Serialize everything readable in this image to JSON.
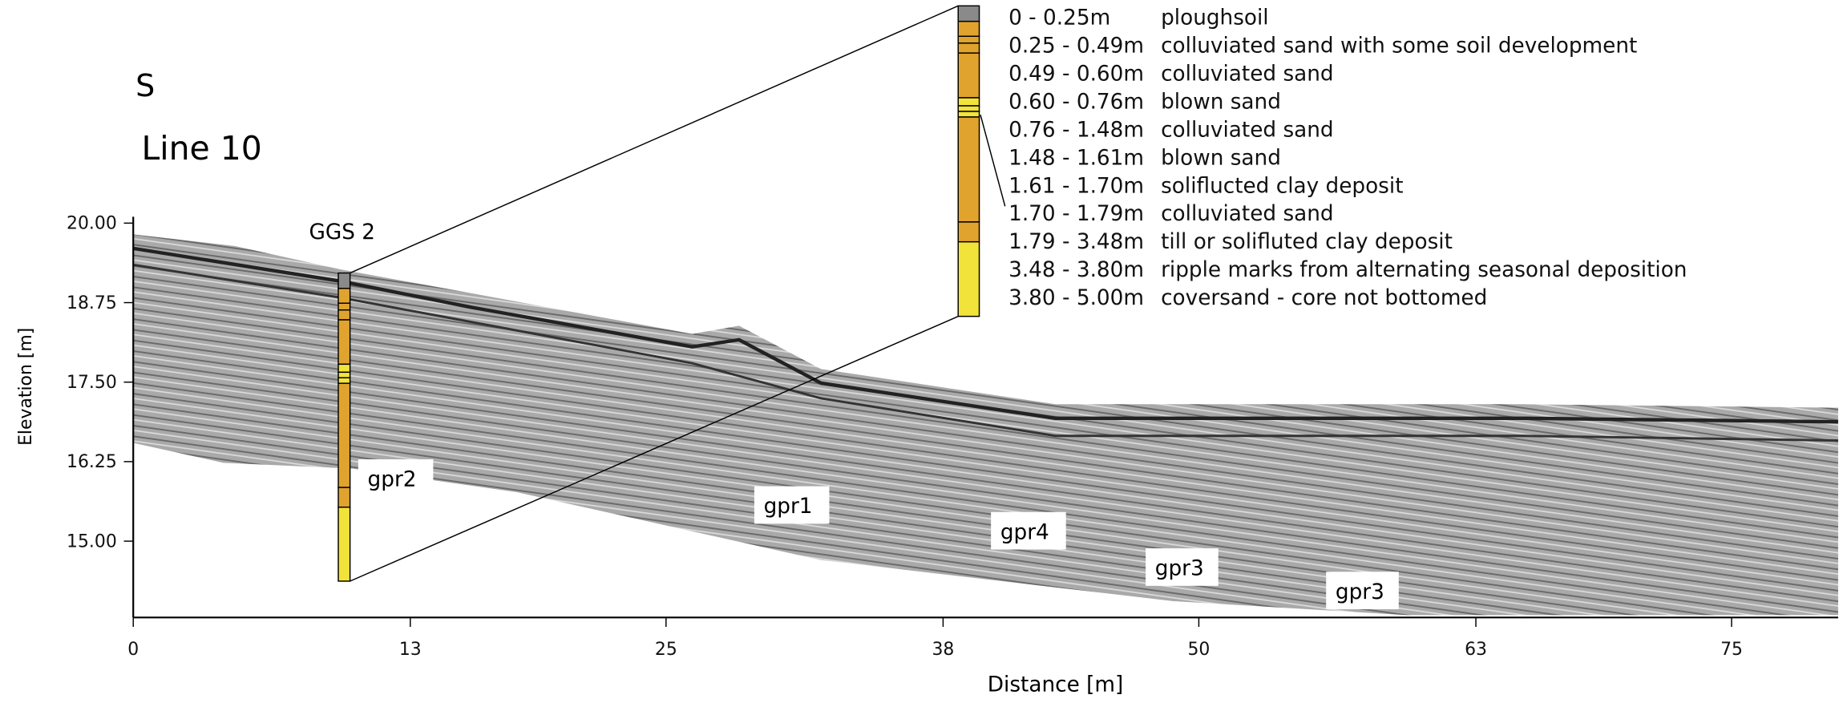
{
  "chart_data": {
    "type": "radargram",
    "direction_label": "S",
    "title": "Line 10",
    "xlabel": "Distance [m]",
    "ylabel": "Elevation [m]",
    "xlim": [
      0,
      80
    ],
    "ylim": [
      13.8,
      20.1
    ],
    "xticks": [
      0,
      13,
      25,
      38,
      50,
      63,
      75
    ],
    "yticks": [
      {
        "value": 20,
        "label": "20.00"
      },
      {
        "value": 18.75,
        "label": "18.75"
      },
      {
        "value": 17.5,
        "label": "17.50"
      },
      {
        "value": 16.25,
        "label": "16.25"
      },
      {
        "value": 15,
        "label": "15.00"
      }
    ],
    "core": {
      "name": "GGS 2",
      "layers": [
        {
          "from": 0,
          "to": 0.25,
          "label": "0 - 0.25m",
          "description": "ploughsoil",
          "color": "#8a8a8a"
        },
        {
          "from": 0.25,
          "to": 0.49,
          "label": "0.25 - 0.49m",
          "description": "colluviated sand with some soil development",
          "color": "#e0a32e"
        },
        {
          "from": 0.49,
          "to": 0.6,
          "label": "0.49 - 0.60m",
          "description": "colluviated sand",
          "color": "#e0a32e"
        },
        {
          "from": 0.6,
          "to": 0.76,
          "label": "0.60 - 0.76m",
          "description": "blown sand",
          "color": "#e0a32e"
        },
        {
          "from": 0.76,
          "to": 1.48,
          "label": "0.76 - 1.48m",
          "description": "colluviated sand",
          "color": "#e0a32e"
        },
        {
          "from": 1.48,
          "to": 1.61,
          "label": "1.48 - 1.61m",
          "description": "blown sand",
          "color": "#f2e33a"
        },
        {
          "from": 1.61,
          "to": 1.7,
          "label": "1.61 - 1.70m",
          "description": "soliflucted clay deposit",
          "color": "#f2e33a"
        },
        {
          "from": 1.7,
          "to": 1.79,
          "label": "1.70 - 1.79m",
          "description": "colluviated sand",
          "color": "#f2e33a"
        },
        {
          "from": 1.79,
          "to": 3.48,
          "label": "1.79 - 3.48m",
          "description": "till or solifluted clay deposit",
          "color": "#e0a32e"
        },
        {
          "from": 3.48,
          "to": 3.8,
          "label": "3.48 - 3.80m",
          "description": "ripple marks from alternating seasonal deposition",
          "color": "#e0a32e"
        },
        {
          "from": 3.8,
          "to": 5,
          "label": "3.80 - 5.00m",
          "description": "coversand - core not bottomed",
          "color": "#f2e33a"
        }
      ]
    },
    "annotations": [
      "gpr2",
      "gpr1",
      "gpr4",
      "gpr3",
      "gpr3"
    ]
  }
}
